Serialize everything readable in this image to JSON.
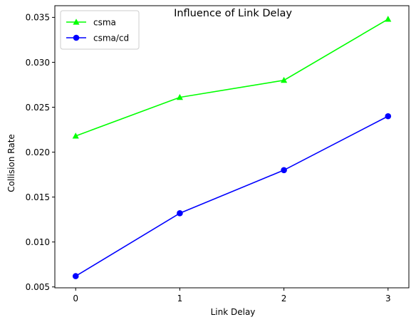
{
  "chart_data": {
    "type": "line",
    "title": "Influence of Link Delay",
    "xlabel": "Link Delay",
    "ylabel": "Collision Rate",
    "x": [
      0,
      1,
      2,
      3
    ],
    "xticks": [
      "0",
      "1",
      "2",
      "3"
    ],
    "yticks": [
      "0.005",
      "0.010",
      "0.015",
      "0.020",
      "0.025",
      "0.030",
      "0.035"
    ],
    "xlim": [
      -0.2,
      3.2
    ],
    "ylim": [
      0.0049,
      0.0363
    ],
    "grid": false,
    "legend_position": "top-left",
    "series": [
      {
        "name": "csma",
        "values": [
          0.0218,
          0.0261,
          0.028,
          0.0348
        ],
        "color": "#00ff00",
        "marker": "triangle-up"
      },
      {
        "name": "csma/cd",
        "values": [
          0.0062,
          0.0132,
          0.018,
          0.024
        ],
        "color": "#0000ff",
        "marker": "circle"
      }
    ]
  }
}
